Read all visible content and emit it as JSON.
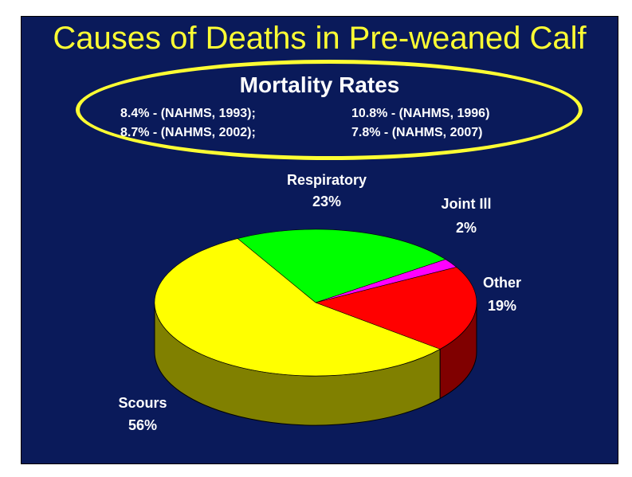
{
  "title": "Causes of Deaths in Pre-weaned Calf",
  "mortality": {
    "title": "Mortality Rates",
    "entries": [
      "8.4% - (NAHMS, 1993);",
      "10.8% - (NAHMS, 1996)",
      "8.7% - (NAHMS, 2002);",
      "7.8% - (NAHMS, 2007)"
    ]
  },
  "chart_data": {
    "type": "pie",
    "slices": [
      {
        "label": "Respiratory",
        "value": 23,
        "display": "23%",
        "color": "#00ff00"
      },
      {
        "label": "Joint Ill",
        "value": 2,
        "display": "2%",
        "color": "#ff00ff"
      },
      {
        "label": "Other",
        "value": 19,
        "display": "19%",
        "color": "#ff0000"
      },
      {
        "label": "Scours",
        "value": 56,
        "display": "56%",
        "color": "#ffff00"
      }
    ],
    "side_colors": {
      "#00ff00": "#008000",
      "#ff00ff": "#800080",
      "#ff0000": "#800000",
      "#ffff00": "#808000"
    },
    "style": "3d"
  },
  "colors": {
    "background": "#0a1a5a",
    "title": "#ffff33",
    "ellipse": "#ffff33",
    "text": "#ffffff"
  }
}
